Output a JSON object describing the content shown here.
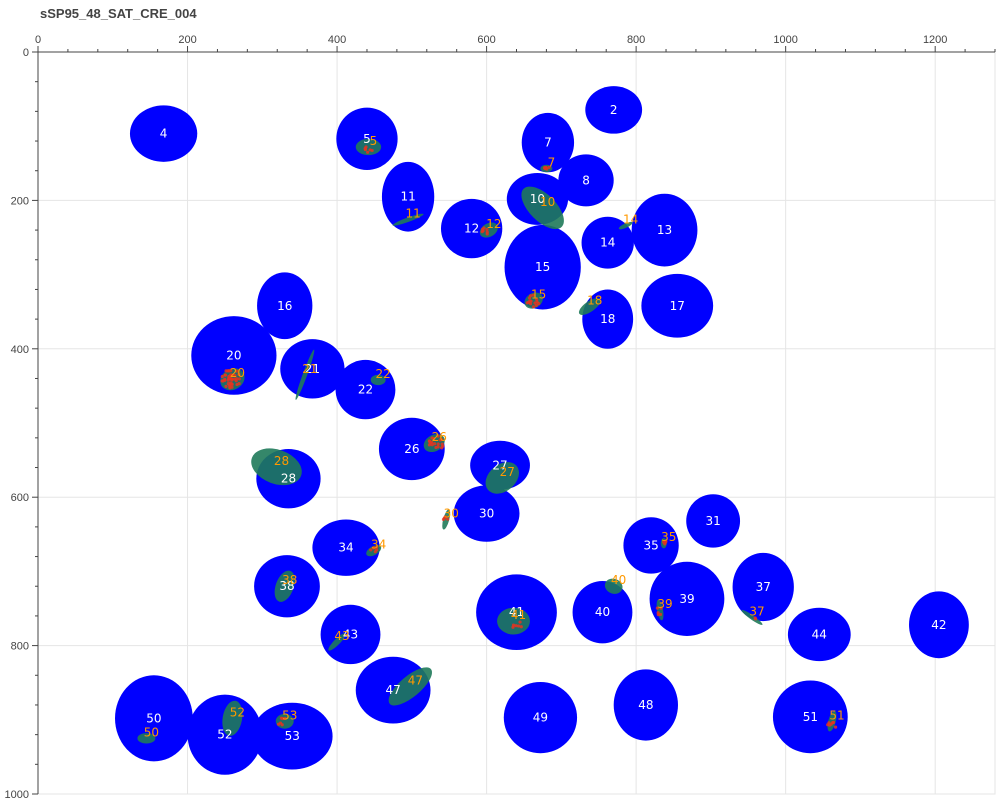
{
  "title": "sSP95_48_SAT_CRE_004",
  "chart_data": {
    "type": "scatter",
    "title": "sSP95_48_SAT_CRE_004",
    "xlim": [
      0,
      1280
    ],
    "ylim": [
      0,
      1000
    ],
    "y_inverted": true,
    "x_axis_position": "top",
    "grid": true,
    "x_ticks": [
      "0",
      "200",
      "400",
      "600",
      "800",
      "1000",
      "1200"
    ],
    "y_ticks": [
      "0",
      "200",
      "400",
      "600",
      "800",
      "1000"
    ],
    "colors": {
      "ellipse_fill": "#0000ff",
      "ellipse_label": "#ffffff",
      "detection_fill": "#1f7a5a",
      "detection_label": "#ff9900",
      "points": "#e8321e"
    },
    "ellipses": [
      {
        "id": "2",
        "x": 770,
        "y": 78,
        "rx": 38,
        "ry": 32,
        "angle": 0
      },
      {
        "id": "4",
        "x": 168,
        "y": 110,
        "rx": 45,
        "ry": 38,
        "angle": 0
      },
      {
        "id": "5",
        "x": 440,
        "y": 117,
        "rx": 41,
        "ry": 42,
        "angle": 0
      },
      {
        "id": "7",
        "x": 682,
        "y": 122,
        "rx": 35,
        "ry": 40,
        "angle": 0
      },
      {
        "id": "8",
        "x": 733,
        "y": 173,
        "rx": 37,
        "ry": 35,
        "angle": 0
      },
      {
        "id": "10",
        "x": 668,
        "y": 198,
        "rx": 41,
        "ry": 35,
        "angle": 0
      },
      {
        "id": "11",
        "x": 495,
        "y": 195,
        "rx": 35,
        "ry": 47,
        "angle": 0
      },
      {
        "id": "12",
        "x": 580,
        "y": 238,
        "rx": 41,
        "ry": 40,
        "angle": 0
      },
      {
        "id": "13",
        "x": 838,
        "y": 240,
        "rx": 44,
        "ry": 49,
        "angle": 0
      },
      {
        "id": "14",
        "x": 762,
        "y": 257,
        "rx": 35,
        "ry": 35,
        "angle": 0
      },
      {
        "id": "15",
        "x": 675,
        "y": 290,
        "rx": 51,
        "ry": 57,
        "angle": 0
      },
      {
        "id": "16",
        "x": 330,
        "y": 342,
        "rx": 37,
        "ry": 45,
        "angle": 0
      },
      {
        "id": "17",
        "x": 855,
        "y": 342,
        "rx": 48,
        "ry": 43,
        "angle": 0
      },
      {
        "id": "18",
        "x": 762,
        "y": 360,
        "rx": 34,
        "ry": 40,
        "angle": 0
      },
      {
        "id": "20",
        "x": 262,
        "y": 409,
        "rx": 57,
        "ry": 53,
        "angle": 0
      },
      {
        "id": "21",
        "x": 367,
        "y": 427,
        "rx": 43,
        "ry": 40,
        "angle": 0
      },
      {
        "id": "22",
        "x": 438,
        "y": 455,
        "rx": 40,
        "ry": 40,
        "angle": 0
      },
      {
        "id": "26",
        "x": 500,
        "y": 535,
        "rx": 44,
        "ry": 42,
        "angle": 0
      },
      {
        "id": "27",
        "x": 618,
        "y": 557,
        "rx": 40,
        "ry": 33,
        "angle": 0
      },
      {
        "id": "28",
        "x": 335,
        "y": 575,
        "rx": 43,
        "ry": 40,
        "angle": 0
      },
      {
        "id": "30",
        "x": 600,
        "y": 622,
        "rx": 44,
        "ry": 38,
        "angle": 0
      },
      {
        "id": "31",
        "x": 903,
        "y": 632,
        "rx": 36,
        "ry": 36,
        "angle": 0
      },
      {
        "id": "34",
        "x": 412,
        "y": 668,
        "rx": 45,
        "ry": 38,
        "angle": 0
      },
      {
        "id": "35",
        "x": 820,
        "y": 665,
        "rx": 37,
        "ry": 38,
        "angle": 0
      },
      {
        "id": "37",
        "x": 970,
        "y": 721,
        "rx": 41,
        "ry": 46,
        "angle": 0
      },
      {
        "id": "38",
        "x": 333,
        "y": 720,
        "rx": 44,
        "ry": 42,
        "angle": 0
      },
      {
        "id": "39",
        "x": 868,
        "y": 737,
        "rx": 50,
        "ry": 50,
        "angle": 0
      },
      {
        "id": "40",
        "x": 755,
        "y": 755,
        "rx": 40,
        "ry": 42,
        "angle": 0
      },
      {
        "id": "41",
        "x": 640,
        "y": 755,
        "rx": 54,
        "ry": 51,
        "angle": 0
      },
      {
        "id": "42",
        "x": 1205,
        "y": 772,
        "rx": 40,
        "ry": 45,
        "angle": 0
      },
      {
        "id": "43",
        "x": 418,
        "y": 785,
        "rx": 40,
        "ry": 40,
        "angle": 0
      },
      {
        "id": "44",
        "x": 1045,
        "y": 785,
        "rx": 42,
        "ry": 36,
        "angle": 0
      },
      {
        "id": "47",
        "x": 475,
        "y": 860,
        "rx": 50,
        "ry": 45,
        "angle": 0
      },
      {
        "id": "48",
        "x": 813,
        "y": 880,
        "rx": 43,
        "ry": 48,
        "angle": 0
      },
      {
        "id": "49",
        "x": 672,
        "y": 897,
        "rx": 49,
        "ry": 48,
        "angle": 0
      },
      {
        "id": "50",
        "x": 155,
        "y": 898,
        "rx": 52,
        "ry": 58,
        "angle": 0
      },
      {
        "id": "51",
        "x": 1033,
        "y": 896,
        "rx": 50,
        "ry": 49,
        "angle": 0
      },
      {
        "id": "52",
        "x": 250,
        "y": 920,
        "rx": 50,
        "ry": 54,
        "angle": 0
      },
      {
        "id": "53",
        "x": 340,
        "y": 922,
        "rx": 54,
        "ry": 45,
        "angle": 0
      }
    ],
    "detections": [
      {
        "id": "5",
        "x": 442,
        "y": 128,
        "rx": 17,
        "ry": 11,
        "angle": 0
      },
      {
        "id": "7",
        "x": 680,
        "y": 157,
        "rx": 8,
        "ry": 5,
        "angle": 0
      },
      {
        "id": "10",
        "x": 675,
        "y": 210,
        "rx": 36,
        "ry": 18,
        "angle": 45
      },
      {
        "id": "11",
        "x": 495,
        "y": 226,
        "rx": 22,
        "ry": 3,
        "angle": -20
      },
      {
        "id": "12",
        "x": 603,
        "y": 240,
        "rx": 13,
        "ry": 9,
        "angle": -30
      },
      {
        "id": "14",
        "x": 786,
        "y": 234,
        "rx": 10,
        "ry": 3,
        "angle": -25
      },
      {
        "id": "15",
        "x": 663,
        "y": 335,
        "rx": 13,
        "ry": 10,
        "angle": -30
      },
      {
        "id": "18",
        "x": 738,
        "y": 343,
        "rx": 17,
        "ry": 7,
        "angle": -35
      },
      {
        "id": "20",
        "x": 260,
        "y": 441,
        "rx": 17,
        "ry": 14,
        "angle": -30
      },
      {
        "id": "21",
        "x": 357,
        "y": 435,
        "rx": 3,
        "ry": 36,
        "angle": 20
      },
      {
        "id": "22",
        "x": 455,
        "y": 442,
        "rx": 10,
        "ry": 7,
        "angle": 0
      },
      {
        "id": "26",
        "x": 530,
        "y": 527,
        "rx": 15,
        "ry": 11,
        "angle": -30
      },
      {
        "id": "27",
        "x": 621,
        "y": 574,
        "rx": 25,
        "ry": 18,
        "angle": -40
      },
      {
        "id": "28",
        "x": 319,
        "y": 559,
        "rx": 35,
        "ry": 23,
        "angle": 20
      },
      {
        "id": "30",
        "x": 546,
        "y": 630,
        "rx": 4,
        "ry": 14,
        "angle": 15
      },
      {
        "id": "34",
        "x": 449,
        "y": 672,
        "rx": 11,
        "ry": 6,
        "angle": -30
      },
      {
        "id": "35",
        "x": 837,
        "y": 662,
        "rx": 4,
        "ry": 7,
        "angle": 0
      },
      {
        "id": "37",
        "x": 955,
        "y": 762,
        "rx": 17,
        "ry": 3,
        "angle": 35
      },
      {
        "id": "38",
        "x": 330,
        "y": 720,
        "rx": 12,
        "ry": 22,
        "angle": 20
      },
      {
        "id": "39",
        "x": 832,
        "y": 752,
        "rx": 4,
        "ry": 14,
        "angle": -10
      },
      {
        "id": "40",
        "x": 770,
        "y": 720,
        "rx": 12,
        "ry": 10,
        "angle": 20
      },
      {
        "id": "41",
        "x": 636,
        "y": 767,
        "rx": 22,
        "ry": 18,
        "angle": 0
      },
      {
        "id": "43",
        "x": 400,
        "y": 795,
        "rx": 16,
        "ry": 4,
        "angle": -45
      },
      {
        "id": "47",
        "x": 498,
        "y": 855,
        "rx": 36,
        "ry": 14,
        "angle": -40
      },
      {
        "id": "50",
        "x": 145,
        "y": 925,
        "rx": 12,
        "ry": 7,
        "angle": 0
      },
      {
        "id": "51",
        "x": 1062,
        "y": 902,
        "rx": 5,
        "ry": 14,
        "angle": 15
      },
      {
        "id": "52",
        "x": 260,
        "y": 898,
        "rx": 13,
        "ry": 24,
        "angle": 10
      },
      {
        "id": "53",
        "x": 330,
        "y": 902,
        "rx": 12,
        "ry": 10,
        "angle": 0
      }
    ],
    "point_clusters": [
      {
        "x": 442,
        "y": 130,
        "n": 6,
        "spread": 6
      },
      {
        "x": 680,
        "y": 157,
        "n": 6,
        "spread": 4
      },
      {
        "x": 598,
        "y": 240,
        "n": 7,
        "spread": 6
      },
      {
        "x": 662,
        "y": 335,
        "n": 14,
        "spread": 9
      },
      {
        "x": 258,
        "y": 440,
        "n": 40,
        "spread": 13
      },
      {
        "x": 533,
        "y": 527,
        "n": 18,
        "spread": 10
      },
      {
        "x": 545,
        "y": 630,
        "n": 4,
        "spread": 4
      },
      {
        "x": 450,
        "y": 670,
        "n": 6,
        "spread": 5
      },
      {
        "x": 837,
        "y": 660,
        "n": 4,
        "spread": 4
      },
      {
        "x": 832,
        "y": 752,
        "n": 5,
        "spread": 7
      },
      {
        "x": 640,
        "y": 772,
        "n": 6,
        "spread": 8
      },
      {
        "x": 1062,
        "y": 905,
        "n": 7,
        "spread": 8
      },
      {
        "x": 326,
        "y": 902,
        "n": 6,
        "spread": 6
      },
      {
        "x": 958,
        "y": 762,
        "n": 2,
        "spread": 3
      }
    ]
  }
}
